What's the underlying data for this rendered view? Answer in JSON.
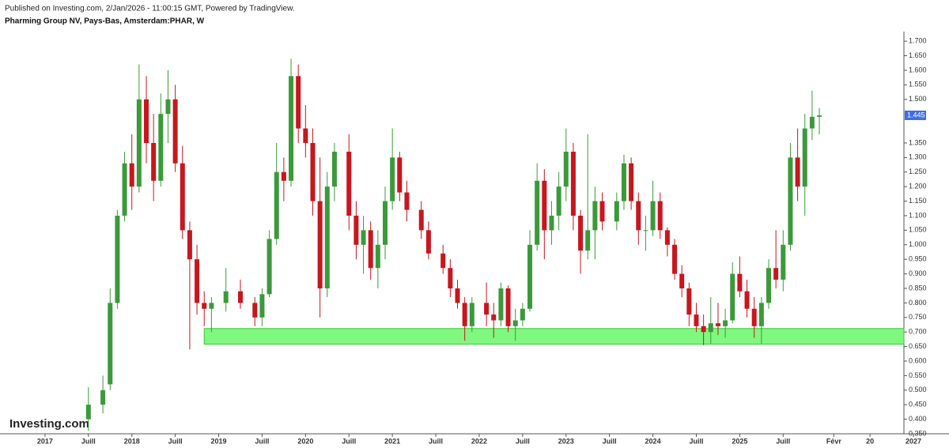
{
  "header": {
    "published": "Published on Investing.com, 2/Jan/2026 - 11:00:15 GMT, Powered by TradingView.",
    "symbol": "Pharming Group NV, Pays-Bas, Amsterdam:PHAR, W"
  },
  "watermark": "Investing.com",
  "chart_data": {
    "type": "candlestick",
    "up_color": "#3a9a3a",
    "down_color": "#c8161d",
    "x": [
      "2017-07",
      "2017-09",
      "2017-10",
      "2017-11",
      "2017-12",
      "2018-01",
      "2018-02",
      "2018-03",
      "2018-04",
      "2018-05",
      "2018-06",
      "2018-07",
      "2018-08",
      "2018-09",
      "2018-10",
      "2018-11",
      "2018-12",
      "2019-02",
      "2019-04",
      "2019-06",
      "2019-07",
      "2019-08",
      "2019-09",
      "2019-10",
      "2019-11",
      "2019-12",
      "2020-01",
      "2020-02",
      "2020-03",
      "2020-04",
      "2020-05",
      "2020-07",
      "2020-08",
      "2020-09",
      "2020-10",
      "2020-11",
      "2020-12",
      "2021-01",
      "2021-02",
      "2021-03",
      "2021-05",
      "2021-06",
      "2021-08",
      "2021-09",
      "2021-10",
      "2021-11",
      "2021-12",
      "2022-02",
      "2022-03",
      "2022-04",
      "2022-05",
      "2022-06",
      "2022-07",
      "2022-08",
      "2022-09",
      "2022-10",
      "2022-11",
      "2022-12",
      "2023-01",
      "2023-02",
      "2023-03",
      "2023-04",
      "2023-05",
      "2023-06",
      "2023-08",
      "2023-09",
      "2023-10",
      "2023-11",
      "2023-12",
      "2024-01",
      "2024-02",
      "2024-03",
      "2024-04",
      "2024-05",
      "2024-06",
      "2024-07",
      "2024-08",
      "2024-09",
      "2024-10",
      "2024-11",
      "2024-12",
      "2025-01",
      "2025-02",
      "2025-03",
      "2025-04",
      "2025-05",
      "2025-06",
      "2025-07",
      "2025-08",
      "2025-09",
      "2025-10",
      "2025-11",
      "2025-12"
    ],
    "open": [
      0.4,
      0.45,
      0.52,
      0.8,
      1.1,
      1.28,
      1.2,
      1.5,
      1.35,
      1.22,
      1.45,
      1.5,
      1.28,
      1.05,
      0.95,
      0.8,
      0.78,
      0.8,
      0.84,
      0.8,
      0.75,
      0.83,
      1.02,
      1.25,
      1.22,
      1.58,
      1.4,
      1.35,
      1.15,
      0.85,
      1.2,
      1.32,
      1.1,
      1.0,
      1.05,
      0.92,
      1.0,
      1.15,
      1.3,
      1.18,
      1.12,
      1.05,
      0.97,
      0.92,
      0.85,
      0.8,
      0.72,
      0.8,
      0.76,
      0.74,
      0.85,
      0.72,
      0.74,
      0.78,
      1.0,
      1.22,
      1.05,
      1.1,
      1.2,
      1.32,
      1.1,
      0.98,
      1.05,
      1.15,
      1.08,
      1.15,
      1.28,
      1.15,
      1.05,
      1.05,
      1.15,
      1.05,
      1.0,
      0.9,
      0.85,
      0.76,
      0.72,
      0.7,
      0.73,
      0.72,
      0.74,
      0.9,
      0.84,
      0.78,
      0.72,
      0.8,
      0.92,
      0.88,
      1.0,
      1.3,
      1.2,
      1.4,
      1.44
    ],
    "high": [
      0.51,
      0.55,
      0.85,
      1.12,
      1.32,
      1.38,
      1.62,
      1.58,
      1.45,
      1.52,
      1.6,
      1.55,
      1.34,
      1.08,
      1.0,
      0.84,
      0.82,
      0.92,
      0.88,
      0.82,
      0.85,
      1.05,
      1.35,
      1.3,
      1.64,
      1.62,
      1.48,
      1.4,
      1.3,
      1.25,
      1.35,
      1.38,
      1.15,
      1.1,
      1.08,
      1.05,
      1.2,
      1.4,
      1.32,
      1.22,
      1.15,
      1.08,
      1.0,
      0.95,
      0.88,
      0.82,
      0.82,
      0.87,
      0.8,
      0.87,
      0.86,
      0.78,
      0.8,
      1.05,
      1.28,
      1.26,
      1.15,
      1.25,
      1.4,
      1.35,
      1.12,
      1.38,
      1.2,
      1.18,
      1.18,
      1.31,
      1.3,
      1.18,
      1.1,
      1.22,
      1.18,
      1.06,
      1.02,
      0.93,
      0.87,
      0.8,
      0.76,
      0.82,
      0.8,
      0.78,
      0.94,
      0.96,
      0.88,
      0.82,
      0.82,
      0.95,
      1.05,
      1.05,
      1.35,
      1.4,
      1.45,
      1.53,
      1.47
    ],
    "low": [
      0.36,
      0.42,
      0.5,
      0.78,
      1.08,
      1.12,
      1.18,
      1.28,
      1.15,
      1.2,
      1.35,
      1.25,
      1.02,
      0.64,
      0.76,
      0.72,
      0.7,
      0.77,
      0.78,
      0.72,
      0.72,
      0.82,
      1.0,
      1.15,
      1.2,
      1.35,
      1.3,
      1.1,
      0.75,
      0.82,
      1.15,
      1.05,
      0.95,
      0.9,
      0.88,
      0.85,
      0.95,
      1.12,
      1.15,
      1.08,
      1.02,
      0.95,
      0.9,
      0.82,
      0.78,
      0.67,
      0.7,
      0.72,
      0.68,
      0.72,
      0.7,
      0.67,
      0.72,
      0.77,
      0.98,
      0.95,
      1.0,
      1.05,
      1.15,
      1.05,
      0.9,
      0.95,
      0.95,
      1.05,
      1.05,
      1.12,
      1.12,
      1.0,
      0.98,
      1.03,
      1.02,
      0.96,
      0.88,
      0.82,
      0.72,
      0.7,
      0.655,
      0.66,
      0.69,
      0.68,
      0.73,
      0.82,
      0.75,
      0.68,
      0.66,
      0.78,
      0.85,
      0.84,
      0.98,
      1.15,
      1.1,
      1.36,
      1.38
    ],
    "close": [
      0.45,
      0.5,
      0.8,
      1.1,
      1.28,
      1.2,
      1.5,
      1.35,
      1.22,
      1.45,
      1.5,
      1.28,
      1.05,
      0.95,
      0.8,
      0.78,
      0.8,
      0.84,
      0.8,
      0.75,
      0.83,
      1.02,
      1.25,
      1.22,
      1.58,
      1.4,
      1.35,
      1.15,
      0.85,
      1.2,
      1.32,
      1.1,
      1.0,
      1.05,
      0.92,
      1.0,
      1.15,
      1.3,
      1.18,
      1.12,
      1.05,
      0.97,
      0.92,
      0.85,
      0.8,
      0.72,
      0.8,
      0.76,
      0.74,
      0.85,
      0.72,
      0.74,
      0.78,
      1.0,
      1.22,
      1.05,
      1.1,
      1.2,
      1.32,
      1.1,
      0.98,
      1.05,
      1.15,
      1.08,
      1.15,
      1.28,
      1.15,
      1.05,
      1.05,
      1.15,
      1.05,
      1.0,
      0.9,
      0.85,
      0.76,
      0.72,
      0.7,
      0.73,
      0.72,
      0.74,
      0.9,
      0.84,
      0.78,
      0.72,
      0.8,
      0.92,
      0.88,
      1.0,
      1.3,
      1.2,
      1.4,
      1.44,
      1.445
    ],
    "xlim": [
      "2016-07",
      "2027-01"
    ],
    "xticks": [
      {
        "value": "2017-01",
        "label": "2017"
      },
      {
        "value": "2017-07",
        "label": "Juill"
      },
      {
        "value": "2018-01",
        "label": "2018"
      },
      {
        "value": "2018-07",
        "label": "Juill"
      },
      {
        "value": "2019-01",
        "label": "2019"
      },
      {
        "value": "2019-07",
        "label": "Juill"
      },
      {
        "value": "2020-01",
        "label": "2020"
      },
      {
        "value": "2020-07",
        "label": "Juill"
      },
      {
        "value": "2021-01",
        "label": "2021"
      },
      {
        "value": "2021-07",
        "label": "Juill"
      },
      {
        "value": "2022-01",
        "label": "2022"
      },
      {
        "value": "2022-07",
        "label": "Juill"
      },
      {
        "value": "2023-01",
        "label": "2023"
      },
      {
        "value": "2023-07",
        "label": "Juill"
      },
      {
        "value": "2024-01",
        "label": "2024"
      },
      {
        "value": "2024-07",
        "label": "Juill"
      },
      {
        "value": "2025-01",
        "label": "2025"
      },
      {
        "value": "2025-07",
        "label": "Juill"
      },
      {
        "value": "2026-02",
        "label": "Févr"
      },
      {
        "value": "2026-07",
        "label": "20"
      },
      {
        "value": "2027-01",
        "label": "2027"
      }
    ],
    "ylim": [
      0.35,
      1.733
    ],
    "yticks": [
      {
        "value": 0.35,
        "label": "0.350"
      },
      {
        "value": 0.4,
        "label": "0.400"
      },
      {
        "value": 0.45,
        "label": "0.450"
      },
      {
        "value": 0.5,
        "label": "0.500"
      },
      {
        "value": 0.55,
        "label": "0.550"
      },
      {
        "value": 0.6,
        "label": "0.600"
      },
      {
        "value": 0.65,
        "label": "0.650"
      },
      {
        "value": 0.7,
        "label": "0.700"
      },
      {
        "value": 0.75,
        "label": "0.750"
      },
      {
        "value": 0.8,
        "label": "0.800"
      },
      {
        "value": 0.85,
        "label": "0.850"
      },
      {
        "value": 0.9,
        "label": "0.900"
      },
      {
        "value": 0.95,
        "label": "0.950"
      },
      {
        "value": 1,
        "label": "1.000"
      },
      {
        "value": 1.05,
        "label": "1.050"
      },
      {
        "value": 1.1,
        "label": "1.100"
      },
      {
        "value": 1.15,
        "label": "1.150"
      },
      {
        "value": 1.2,
        "label": "1.200"
      },
      {
        "value": 1.25,
        "label": "1.250"
      },
      {
        "value": 1.3,
        "label": "1.300"
      },
      {
        "value": 1.35,
        "label": "1.350"
      },
      {
        "value": 1.5,
        "label": "1.500"
      },
      {
        "value": 1.55,
        "label": "1.550"
      },
      {
        "value": 1.6,
        "label": "1.600"
      },
      {
        "value": 1.65,
        "label": "1.650"
      },
      {
        "value": 1.7,
        "label": "1.700"
      }
    ],
    "last_price": {
      "value": 1.445,
      "label": "1.445",
      "color": "#3f6fe0"
    },
    "zone": {
      "from": "2018-11",
      "low": 0.658,
      "high": 0.712,
      "color": "#7ef87e",
      "border": "#3fc43f"
    }
  }
}
